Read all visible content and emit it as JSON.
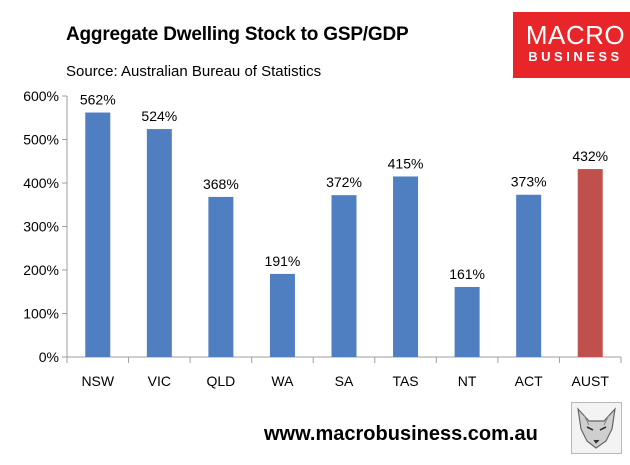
{
  "header": {
    "title": "Aggregate Dwelling Stock to GSP/GDP",
    "source": "Source: Australian Bureau of Statistics"
  },
  "logo": {
    "line1": "MACRO",
    "line2": "BUSINESS"
  },
  "footer": {
    "url": "www.macrobusiness.com.au",
    "emblem_icon": "fox-head-icon"
  },
  "colors": {
    "bar": "#4f7fc1",
    "highlight_bar": "#c0504d",
    "logo_bg": "#e8262a",
    "axis": "#9e9e9e"
  },
  "chart_data": {
    "type": "bar",
    "title": "Aggregate Dwelling Stock to GSP/GDP",
    "xlabel": "",
    "ylabel": "",
    "categories": [
      "NSW",
      "VIC",
      "QLD",
      "WA",
      "SA",
      "TAS",
      "NT",
      "ACT",
      "AUST"
    ],
    "values": [
      562,
      524,
      368,
      191,
      372,
      415,
      161,
      373,
      432
    ],
    "value_labels": [
      "562%",
      "524%",
      "368%",
      "191%",
      "372%",
      "415%",
      "161%",
      "373%",
      "432%"
    ],
    "highlight_index": 8,
    "ylim": [
      0,
      600
    ],
    "yticks": [
      0,
      100,
      200,
      300,
      400,
      500,
      600
    ],
    "ytick_labels": [
      "0%",
      "100%",
      "200%",
      "300%",
      "400%",
      "500%",
      "600%"
    ],
    "grid": false,
    "legend": "none"
  }
}
